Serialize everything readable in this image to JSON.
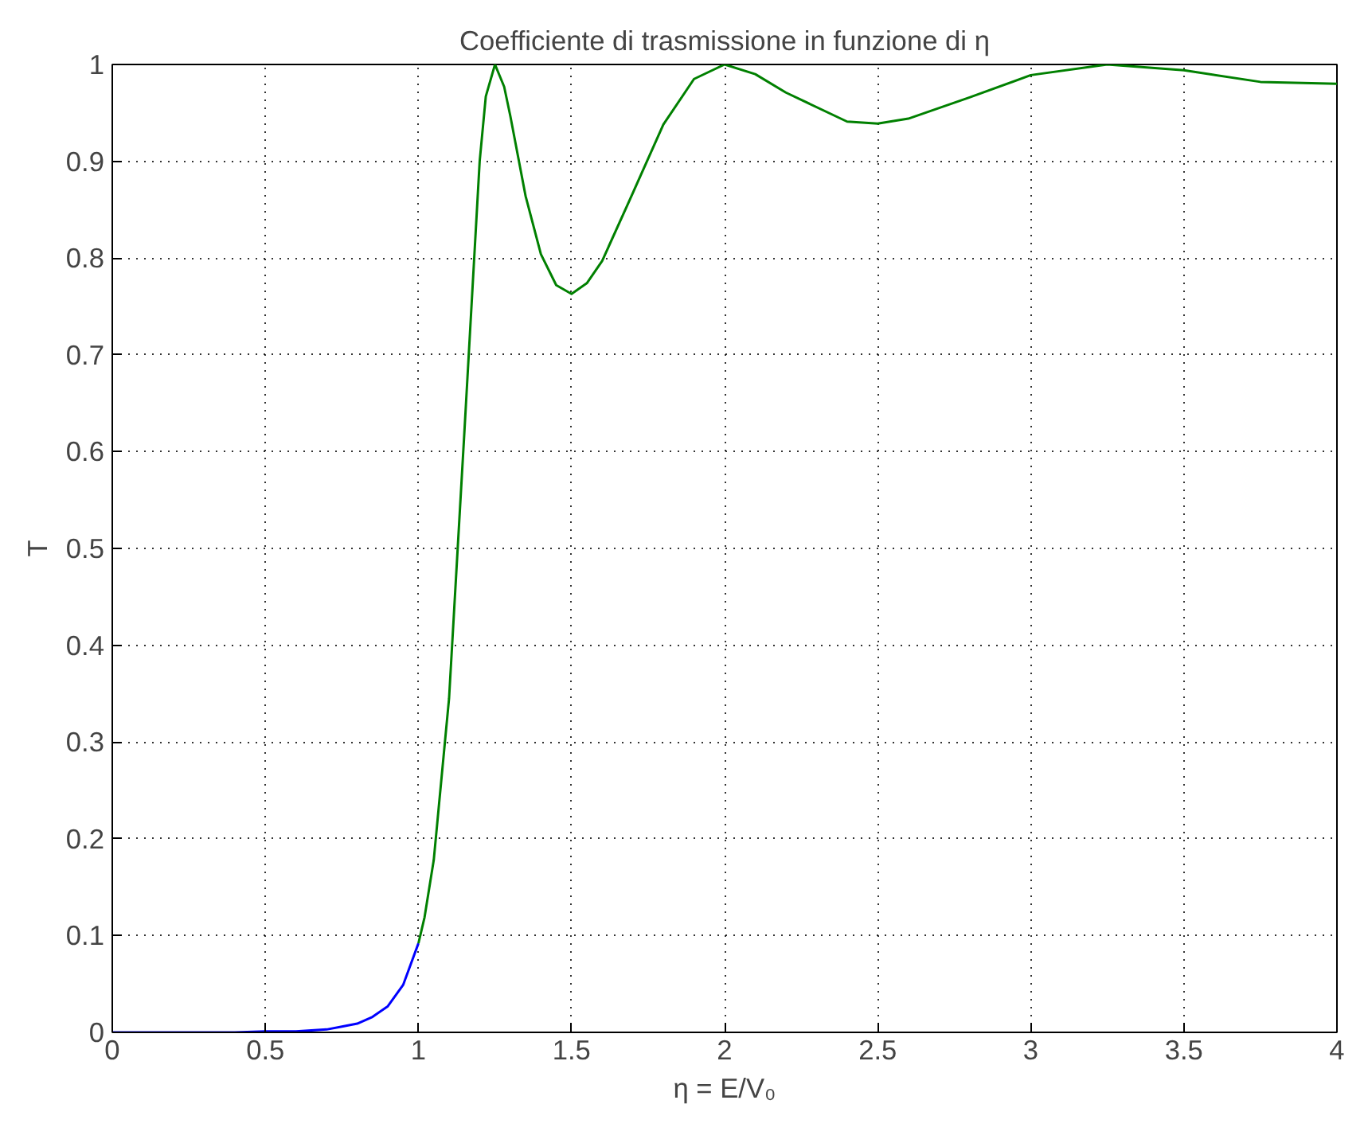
{
  "chart_data": {
    "type": "line",
    "title": "Coefficiente di trasmissione in funzione di η",
    "xlabel": "η = E/V₀",
    "ylabel": "T",
    "xlim": [
      0,
      4
    ],
    "ylim": [
      0,
      1
    ],
    "xticks": [
      0,
      0.5,
      1,
      1.5,
      2,
      2.5,
      3,
      3.5,
      4
    ],
    "yticks": [
      0,
      0.1,
      0.2,
      0.3,
      0.4,
      0.5,
      0.6,
      0.7,
      0.8,
      0.9,
      1
    ],
    "grid": true,
    "line_style": "solid",
    "marker": "none",
    "series": [
      {
        "color": "#0000ff",
        "x": [
          0,
          0.1,
          0.2,
          0.3,
          0.4,
          0.5,
          0.6,
          0.7,
          0.75,
          0.8,
          0.85,
          0.9,
          0.95,
          1
        ],
        "values": [
          0,
          0,
          0,
          0,
          0,
          0.001,
          0.001,
          0.003,
          0.006,
          0.009,
          0.016,
          0.027,
          0.049,
          0.092
        ]
      },
      {
        "color": "#008000",
        "x": [
          1,
          1.02,
          1.05,
          1.1,
          1.15,
          1.2,
          1.22,
          1.25,
          1.28,
          1.3,
          1.35,
          1.4,
          1.45,
          1.5,
          1.55,
          1.6,
          1.7,
          1.8,
          1.9,
          2,
          2.1,
          2.2,
          2.4,
          2.5,
          2.6,
          2.8,
          3,
          3.25,
          3.5,
          3.75,
          4
        ],
        "values": [
          0.092,
          0.119,
          0.178,
          0.345,
          0.62,
          0.9,
          0.967,
          1,
          0.977,
          0.947,
          0.864,
          0.804,
          0.772,
          0.763,
          0.774,
          0.797,
          0.867,
          0.938,
          0.985,
          1,
          0.99,
          0.971,
          0.941,
          0.939,
          0.944,
          0.966,
          0.989,
          1,
          0.994,
          0.982,
          0.98
        ]
      }
    ]
  }
}
